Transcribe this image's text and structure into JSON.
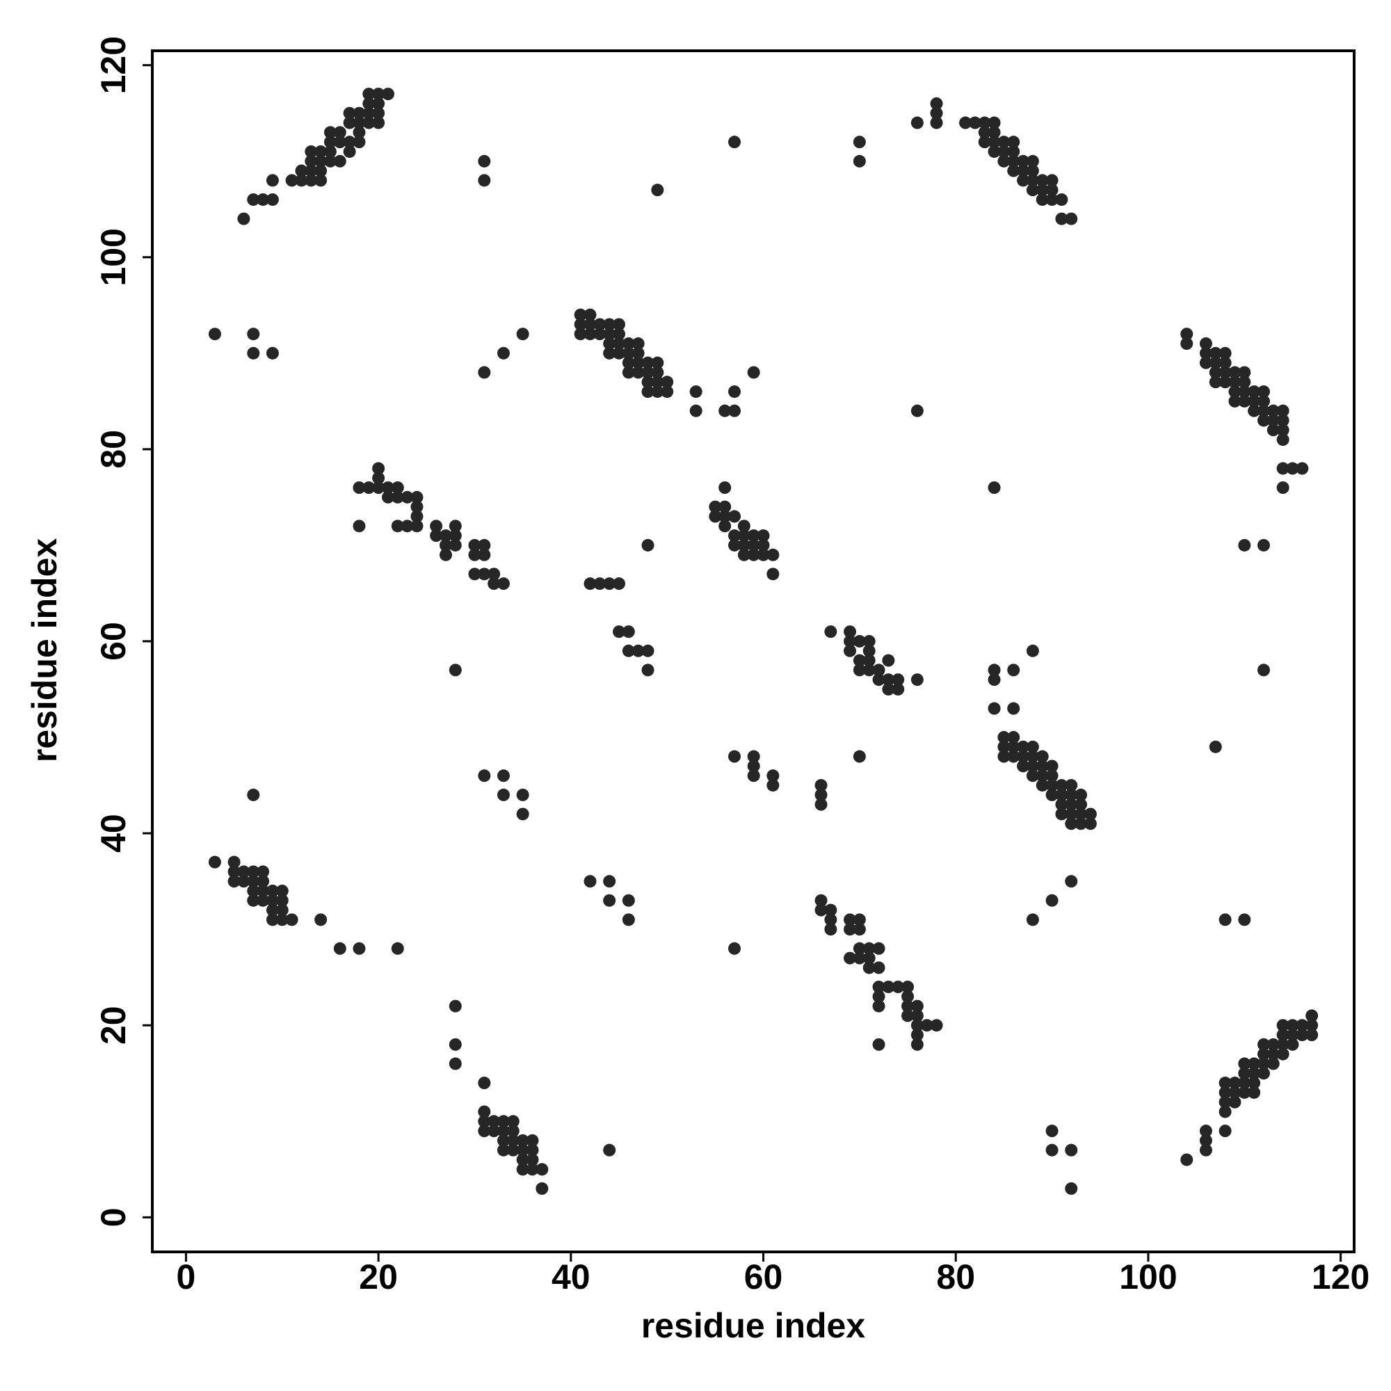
{
  "chart_data": {
    "type": "scatter",
    "xlabel": "residue index",
    "ylabel": "residue index",
    "color": "#262626",
    "xlim": [
      -3.5,
      121.4
    ],
    "ylim": [
      -3.6,
      121.5
    ],
    "xticks": [
      0,
      20,
      40,
      60,
      80,
      100,
      120
    ],
    "yticks": [
      0,
      20,
      40,
      60,
      80,
      100,
      120
    ],
    "x": [
      6,
      7,
      8,
      9,
      9,
      11,
      12,
      12,
      13,
      13,
      13,
      13,
      14,
      14,
      14,
      14,
      15,
      15,
      15,
      15,
      16,
      16,
      16,
      17,
      17,
      17,
      17,
      18,
      18,
      18,
      18,
      19,
      19,
      19,
      19,
      20,
      20,
      20,
      20,
      21,
      104,
      106,
      106,
      106,
      108,
      108,
      108,
      108,
      108,
      109,
      109,
      109,
      110,
      110,
      110,
      110,
      111,
      111,
      111,
      111,
      112,
      112,
      112,
      112,
      113,
      113,
      113,
      114,
      114,
      114,
      114,
      115,
      115,
      115,
      116,
      116,
      117,
      117,
      117,
      3,
      7,
      7,
      9,
      31,
      31,
      49,
      57,
      70,
      70,
      76,
      78,
      78,
      78,
      31,
      33,
      35,
      81,
      82,
      83,
      83,
      83,
      84,
      84,
      84,
      84,
      85,
      85,
      85,
      86,
      86,
      86,
      86,
      87,
      87,
      87,
      88,
      88,
      88,
      88,
      89,
      89,
      89,
      90,
      90,
      90,
      91,
      91,
      92,
      41,
      41,
      41,
      42,
      42,
      42,
      43,
      43,
      44,
      44,
      44,
      44,
      45,
      45,
      45,
      45,
      46,
      46,
      46,
      46,
      47,
      47,
      47,
      47,
      48,
      48,
      48,
      48,
      49,
      49,
      49,
      49,
      50,
      50,
      53,
      53,
      56,
      57,
      57,
      59,
      76,
      104,
      104,
      106,
      106,
      106,
      107,
      107,
      107,
      107,
      108,
      108,
      108,
      108,
      109,
      109,
      109,
      109,
      110,
      110,
      110,
      110,
      111,
      111,
      111,
      112,
      112,
      112,
      112,
      113,
      113,
      113,
      114,
      114,
      114,
      114,
      114,
      114,
      115,
      116,
      84,
      110,
      112,
      112,
      107,
      18,
      18,
      19,
      20,
      20,
      20,
      21,
      21,
      22,
      22,
      22,
      23,
      23,
      24,
      24,
      24,
      24,
      26,
      26,
      27,
      27,
      27,
      28,
      28,
      28,
      30,
      30,
      30,
      31,
      31,
      31,
      32,
      32,
      33,
      48,
      28,
      55,
      55,
      56,
      56,
      56,
      56,
      57,
      57,
      57,
      58,
      58,
      58,
      58,
      59,
      59,
      59,
      60,
      60,
      60,
      61,
      61,
      42,
      43,
      44,
      45,
      45,
      46,
      46,
      47,
      48,
      48,
      67,
      69,
      69,
      69,
      70,
      70,
      70,
      71,
      71,
      71,
      71,
      72,
      72,
      73,
      73,
      73,
      74,
      74,
      76,
      70,
      84,
      84,
      84,
      86,
      86,
      88,
      85,
      85,
      85,
      86,
      86,
      86,
      87,
      87,
      87,
      88,
      88,
      88,
      88,
      89,
      89,
      89,
      89,
      90,
      90,
      90,
      90,
      91,
      91,
      91,
      91,
      92,
      92,
      92,
      92,
      92,
      93,
      93,
      93,
      93,
      94,
      94,
      57,
      59,
      59,
      59,
      61,
      61,
      66,
      66,
      66,
      31,
      33,
      33,
      35,
      35,
      7,
      3,
      5,
      5,
      5,
      6,
      6,
      7,
      7,
      7,
      7,
      8,
      8,
      8,
      8,
      9,
      9,
      9,
      9,
      10,
      10,
      10,
      10,
      11,
      14,
      16,
      18,
      22,
      42,
      44,
      44,
      46,
      46,
      57,
      90,
      92,
      88,
      108,
      110,
      66,
      66,
      67,
      67,
      67,
      69,
      69,
      69,
      70,
      70,
      70,
      70,
      71,
      71,
      71,
      72,
      72,
      72,
      72,
      72,
      73,
      74,
      75,
      75,
      75,
      75,
      76,
      76,
      76,
      76,
      76,
      77,
      78,
      72,
      28,
      28,
      28,
      31,
      31,
      31,
      31,
      32,
      32,
      33,
      33,
      33,
      33,
      34,
      34,
      34,
      34,
      35,
      35,
      35,
      35,
      36,
      36,
      36,
      36,
      37,
      37,
      44,
      90,
      90,
      92,
      92
    ],
    "values": [
      104,
      106,
      106,
      106,
      108,
      108,
      108,
      109,
      108,
      109,
      110,
      111,
      108,
      109,
      110,
      111,
      110,
      111,
      112,
      113,
      110,
      112,
      113,
      111,
      112,
      114,
      115,
      112,
      113,
      114,
      115,
      114,
      115,
      116,
      117,
      114,
      115,
      116,
      117,
      117,
      6,
      7,
      8,
      9,
      9,
      11,
      12,
      13,
      14,
      12,
      13,
      14,
      13,
      14,
      15,
      16,
      13,
      14,
      15,
      16,
      15,
      16,
      17,
      18,
      16,
      17,
      18,
      17,
      18,
      19,
      20,
      18,
      19,
      20,
      19,
      20,
      19,
      20,
      21,
      92,
      92,
      90,
      90,
      110,
      108,
      107,
      112,
      112,
      110,
      114,
      116,
      115,
      114,
      88,
      90,
      92,
      114,
      114,
      114,
      113,
      112,
      114,
      113,
      112,
      111,
      112,
      111,
      110,
      112,
      111,
      110,
      109,
      110,
      109,
      108,
      110,
      109,
      108,
      107,
      108,
      107,
      106,
      108,
      107,
      106,
      106,
      104,
      104,
      94,
      93,
      92,
      94,
      93,
      92,
      93,
      92,
      93,
      92,
      91,
      90,
      93,
      92,
      91,
      90,
      91,
      90,
      89,
      88,
      91,
      90,
      89,
      88,
      89,
      88,
      87,
      86,
      89,
      88,
      87,
      86,
      87,
      86,
      86,
      84,
      84,
      84,
      86,
      88,
      84,
      92,
      91,
      91,
      90,
      89,
      90,
      89,
      88,
      87,
      90,
      89,
      88,
      87,
      88,
      87,
      86,
      85,
      88,
      87,
      86,
      85,
      86,
      85,
      84,
      86,
      85,
      84,
      83,
      84,
      83,
      82,
      84,
      83,
      82,
      81,
      78,
      76,
      78,
      78,
      76,
      70,
      70,
      57,
      49,
      76,
      72,
      76,
      78,
      77,
      76,
      76,
      75,
      76,
      75,
      72,
      75,
      72,
      75,
      74,
      73,
      72,
      72,
      71,
      71,
      70,
      69,
      72,
      71,
      70,
      70,
      69,
      67,
      70,
      69,
      67,
      67,
      66,
      66,
      70,
      57,
      74,
      73,
      76,
      74,
      73,
      72,
      73,
      71,
      70,
      72,
      71,
      70,
      69,
      71,
      70,
      69,
      71,
      70,
      69,
      69,
      67,
      66,
      66,
      66,
      66,
      61,
      61,
      59,
      59,
      59,
      57,
      61,
      61,
      60,
      59,
      60,
      58,
      57,
      60,
      59,
      58,
      57,
      57,
      56,
      58,
      56,
      55,
      56,
      55,
      56,
      48,
      57,
      56,
      53,
      57,
      53,
      59,
      50,
      49,
      48,
      50,
      49,
      48,
      49,
      48,
      47,
      49,
      48,
      47,
      46,
      48,
      47,
      46,
      45,
      47,
      46,
      45,
      44,
      45,
      44,
      43,
      42,
      45,
      44,
      43,
      42,
      41,
      44,
      43,
      42,
      41,
      41,
      42,
      48,
      48,
      47,
      46,
      46,
      45,
      45,
      44,
      43,
      46,
      46,
      44,
      44,
      42,
      44,
      37,
      37,
      36,
      35,
      36,
      35,
      36,
      35,
      34,
      33,
      36,
      35,
      34,
      33,
      34,
      33,
      32,
      31,
      34,
      33,
      32,
      31,
      31,
      31,
      28,
      28,
      28,
      35,
      35,
      33,
      33,
      31,
      28,
      33,
      35,
      31,
      31,
      31,
      33,
      32,
      32,
      31,
      30,
      31,
      30,
      27,
      31,
      30,
      28,
      27,
      28,
      27,
      26,
      28,
      26,
      24,
      23,
      22,
      24,
      24,
      24,
      23,
      22,
      21,
      22,
      21,
      20,
      19,
      18,
      20,
      20,
      18,
      22,
      18,
      16,
      14,
      11,
      10,
      9,
      10,
      9,
      10,
      9,
      8,
      7,
      10,
      9,
      8,
      7,
      8,
      7,
      6,
      5,
      8,
      7,
      6,
      5,
      5,
      3,
      7,
      9,
      7,
      7,
      3
    ]
  }
}
